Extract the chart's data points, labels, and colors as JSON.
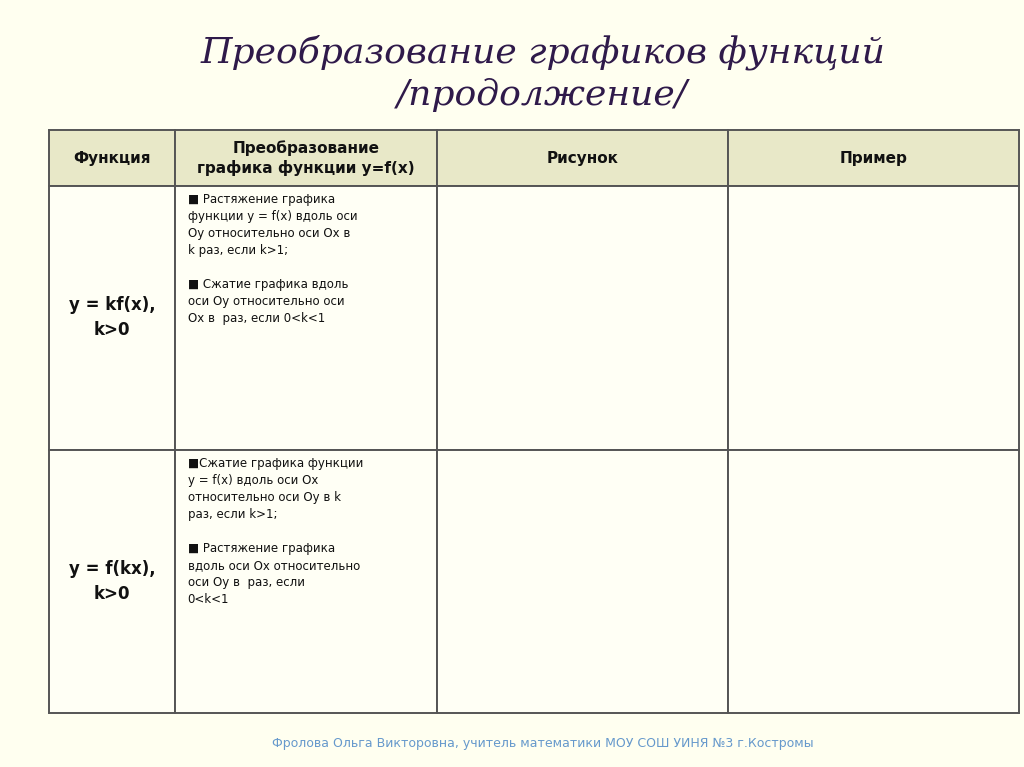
{
  "title": "Преобразование графиков функций\n/продолжение/",
  "footer": "Фролова Ольга Викторовна, учитель математики МОУ СОШ УИНЯ №3 г.Костромы",
  "bg_color": "#FFFFF0",
  "left_stripe_color": "#C8C870",
  "header_bg": "#E8E8C8",
  "cell_bg": "#FFFFF5",
  "border_color": "#555555",
  "title_color": "#2F1A4A",
  "footer_color": "#6699CC",
  "red_color": "#CC0000",
  "blue_color": "#0000CC",
  "col1_header": "Функция",
  "col2_header": "Преобразование\nграфика функции y=f(x)",
  "col3_header": "Рисунок",
  "col4_header": "Пример"
}
